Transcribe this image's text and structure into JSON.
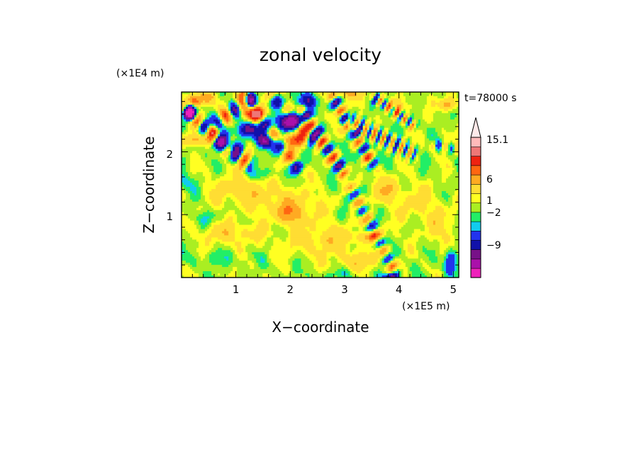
{
  "chart_data": {
    "type": "heatmap",
    "title": "zonal velocity",
    "xlabel": "X−coordinate",
    "ylabel": "Z−coordinate",
    "x_unit": "(×1E5 m)",
    "y_unit": "(×1E4 m)",
    "time_label": "t=78000 s",
    "xlim": [
      0,
      5.1
    ],
    "ylim": [
      0,
      2.95
    ],
    "x_ticks": [
      "1",
      "2",
      "3",
      "4",
      "5"
    ],
    "y_ticks": [
      "1",
      "2"
    ],
    "colorbar_labels": [
      "15.1",
      "6",
      "1",
      "−2",
      "−9"
    ],
    "colorbar_label_values": [
      15.1,
      6,
      1,
      -2,
      -9
    ],
    "levels": [
      -15,
      -12,
      -9,
      -6,
      -4,
      -2,
      -1,
      0,
      1,
      2,
      4,
      6,
      8,
      11,
      15.1,
      20
    ],
    "colors": [
      "#ee22bb",
      "#aa11aa",
      "#771188",
      "#1111aa",
      "#2233ee",
      "#11ccee",
      "#22ee66",
      "#aaee22",
      "#ffff22",
      "#ffdd33",
      "#ffaa22",
      "#ff6611",
      "#ee2211",
      "#ee7777",
      "#ffbbbb"
    ],
    "colorbar_top_arrow_color": "#fde9e9",
    "grid": false,
    "features": [
      {
        "type": "band",
        "x0": 0.0,
        "z0": 2.72,
        "x1": 1.25,
        "z1": 1.78,
        "amp": 8,
        "hw": 0.14,
        "wl": 0.36,
        "tw": 0.04
      },
      {
        "type": "band",
        "x0": 0.5,
        "z0": 2.35,
        "x1": 1.35,
        "z1": 2.9,
        "amp": 7,
        "hw": 0.13,
        "wl": 0.38,
        "tw": 0.05
      },
      {
        "type": "band",
        "x0": 1.1,
        "z0": 2.95,
        "x1": 2.2,
        "z1": 1.65,
        "amp": 7,
        "hw": 0.12,
        "wl": 0.45,
        "tw": 0.04
      },
      {
        "type": "band",
        "x0": 1.6,
        "z0": 2.95,
        "x1": 2.5,
        "z1": 2.1,
        "amp": 7,
        "hw": 0.12,
        "wl": 0.45,
        "tw": 0.05
      },
      {
        "type": "band",
        "x0": 2.2,
        "z0": 2.7,
        "x1": 3.0,
        "z1": 1.62,
        "amp": 8,
        "hw": 0.12,
        "wl": 0.33,
        "tw": 0.04
      },
      {
        "type": "band",
        "x0": 2.75,
        "z0": 2.9,
        "x1": 3.55,
        "z1": 1.75,
        "amp": 7,
        "hw": 0.11,
        "wl": 0.3,
        "tw": 0.04
      },
      {
        "type": "band",
        "x0": 3.05,
        "z0": 2.5,
        "x1": 4.3,
        "z1": 1.95,
        "amp": 6,
        "hw": 0.13,
        "wl": 0.18,
        "tw": 0.03
      },
      {
        "type": "band",
        "x0": 3.5,
        "z0": 2.9,
        "x1": 4.3,
        "z1": 2.4,
        "amp": 6,
        "hw": 0.09,
        "wl": 0.18,
        "tw": 0.03
      },
      {
        "type": "band",
        "x0": 3.1,
        "z0": 1.45,
        "x1": 3.95,
        "z1": 0.05,
        "amp": 5,
        "hw": 0.12,
        "wl": 0.3,
        "tw": 0.03
      },
      {
        "type": "band",
        "x0": 4.6,
        "z0": 2.1,
        "x1": 5.1,
        "z1": 2.05,
        "amp": 4,
        "hw": 0.09,
        "wl": 0.25,
        "tw": 0.04
      },
      {
        "type": "band",
        "x0": 0.05,
        "z0": 2.5,
        "x1": 0.3,
        "z1": 2.85,
        "amp": 6,
        "hw": 0.1,
        "wl": 0.35,
        "tw": 0.04
      },
      {
        "type": "blob",
        "x": 1.95,
        "z": 2.5,
        "rx": 0.16,
        "rz": 0.16,
        "amp": -11
      },
      {
        "type": "blob",
        "x": 1.55,
        "z": 2.18,
        "rx": 0.16,
        "rz": 0.1,
        "amp": -10
      },
      {
        "type": "blob",
        "x": 1.25,
        "z": 2.35,
        "rx": 0.2,
        "rz": 0.12,
        "amp": -8
      },
      {
        "type": "blob",
        "x": 0.85,
        "z": 2.1,
        "rx": 0.2,
        "rz": 0.1,
        "amp": -8
      },
      {
        "type": "blob",
        "x": 0.12,
        "z": 2.6,
        "rx": 0.14,
        "rz": 0.12,
        "amp": -8
      },
      {
        "type": "blob",
        "x": 2.35,
        "z": 2.8,
        "rx": 0.14,
        "rz": 0.12,
        "amp": -8
      },
      {
        "type": "blob",
        "x": 2.1,
        "z": 2.18,
        "rx": 0.22,
        "rz": 0.12,
        "amp": 8
      },
      {
        "type": "blob",
        "x": 1.3,
        "z": 2.6,
        "rx": 0.22,
        "rz": 0.12,
        "amp": 7
      },
      {
        "type": "blob",
        "x": 0.4,
        "z": 2.85,
        "rx": 0.2,
        "rz": 0.1,
        "amp": 6
      },
      {
        "type": "blob",
        "x": 0.2,
        "z": 2.2,
        "rx": 0.18,
        "rz": 0.1,
        "amp": 5
      },
      {
        "type": "blob",
        "x": 1.1,
        "z": 1.4,
        "rx": 0.6,
        "rz": 0.25,
        "amp": 2.5
      },
      {
        "type": "blob",
        "x": 2.0,
        "z": 1.15,
        "rx": 0.6,
        "rz": 0.25,
        "amp": 2.5
      },
      {
        "type": "blob",
        "x": 0.9,
        "z": 0.7,
        "rx": 0.55,
        "rz": 0.18,
        "amp": 2.5
      },
      {
        "type": "blob",
        "x": 2.6,
        "z": 0.6,
        "rx": 0.7,
        "rz": 0.25,
        "amp": 2.5
      },
      {
        "type": "blob",
        "x": 3.3,
        "z": 0.25,
        "rx": 0.5,
        "rz": 0.15,
        "amp": 2.2
      },
      {
        "type": "blob",
        "x": 4.3,
        "z": 1.2,
        "rx": 0.4,
        "rz": 0.3,
        "amp": 2.0
      },
      {
        "type": "blob",
        "x": 4.8,
        "z": 0.8,
        "rx": 0.3,
        "rz": 0.3,
        "amp": 2.0
      },
      {
        "type": "blob",
        "x": 2.0,
        "z": 1.0,
        "rx": 0.25,
        "rz": 0.15,
        "amp": 3.5
      },
      {
        "type": "blob",
        "x": 3.7,
        "z": 1.4,
        "rx": 0.25,
        "rz": 0.2,
        "amp": 3.0
      },
      {
        "type": "blob",
        "x": 3.45,
        "z": 0.65,
        "rx": 0.35,
        "rz": 0.08,
        "amp": 2.5
      },
      {
        "type": "blob",
        "x": 0.4,
        "z": 0.95,
        "rx": 0.3,
        "rz": 0.1,
        "amp": -1.2
      },
      {
        "type": "blob",
        "x": 1.5,
        "z": 1.65,
        "rx": 0.4,
        "rz": 0.1,
        "amp": -1.6
      },
      {
        "type": "blob",
        "x": 0.1,
        "z": 1.5,
        "rx": 0.2,
        "rz": 0.15,
        "amp": -2.2
      },
      {
        "type": "blob",
        "x": 0.6,
        "z": 0.3,
        "rx": 0.6,
        "rz": 0.1,
        "amp": -1.0
      },
      {
        "type": "blob",
        "x": 2.9,
        "z": 0.05,
        "rx": 0.5,
        "rz": 0.08,
        "amp": -1.0
      },
      {
        "type": "blob",
        "x": 4.95,
        "z": 0.25,
        "rx": 0.12,
        "rz": 0.2,
        "amp": -5
      },
      {
        "type": "blob",
        "x": 3.85,
        "z": 0.02,
        "rx": 0.15,
        "rz": 0.05,
        "amp": -6
      },
      {
        "type": "blob",
        "x": 4.9,
        "z": 2.75,
        "rx": 0.15,
        "rz": 0.1,
        "amp": 5
      },
      {
        "type": "blob",
        "x": 3.05,
        "z": 2.95,
        "rx": 0.3,
        "rz": 0.1,
        "amp": 4
      },
      {
        "type": "blob",
        "x": 4.0,
        "z": 2.7,
        "rx": 0.25,
        "rz": 0.12,
        "amp": 3
      }
    ],
    "ripple": {
      "amp": 1.2,
      "kx": 9,
      "kz": 7
    }
  }
}
